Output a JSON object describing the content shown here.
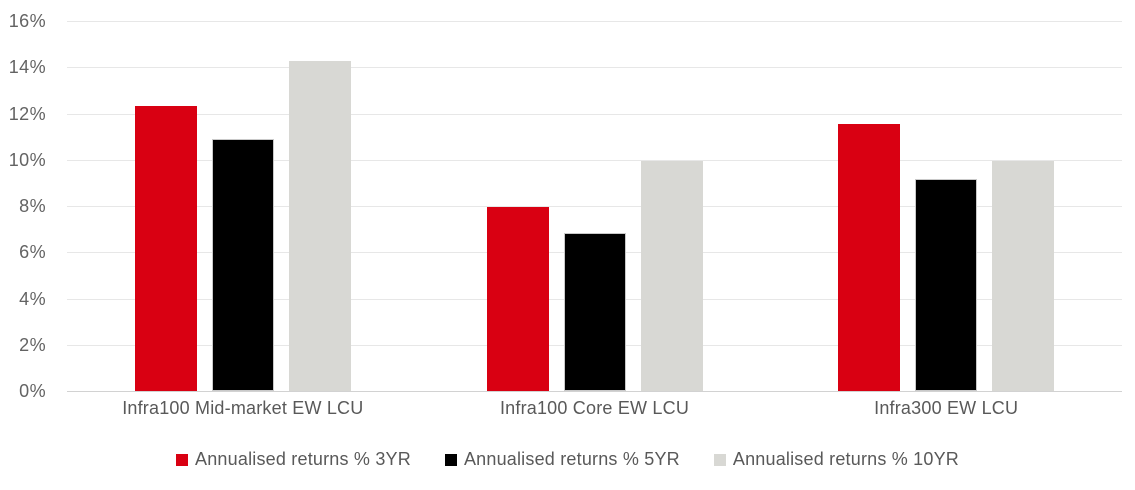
{
  "chart_data": {
    "type": "bar",
    "title": "",
    "categories": [
      "Infra100 Mid-market EW LCU",
      "Infra100 Core EW LCU",
      "Infra300 EW LCU"
    ],
    "series": [
      {
        "name": "Annualised returns % 3YR",
        "color": "#d90012",
        "values": [
          12.34,
          7.94,
          11.55
        ]
      },
      {
        "name": "Annualised returns % 5YR",
        "color": "#000000",
        "values": [
          10.88,
          6.85,
          9.18
        ]
      },
      {
        "name": "Annualised returns % 10YR",
        "color": "#d8d8d4",
        "values": [
          14.26,
          9.96,
          9.96
        ]
      }
    ],
    "ylabel": "",
    "xlabel": "",
    "ylim": [
      0,
      16
    ],
    "ytick_step": 2,
    "ytick_labels": [
      "0%",
      "2%",
      "4%",
      "6%",
      "8%",
      "10%",
      "12%",
      "14%",
      "16%"
    ],
    "grid": true,
    "legend_position": "bottom"
  },
  "colors": {
    "series_3yr": "#d90012",
    "series_5yr": "#000000",
    "series_10yr": "#d8d8d4",
    "gridline": "#e7e7e7",
    "axis_line": "#d2d2d2",
    "axis_text": "#636363",
    "label_text": "#595959",
    "background": "#ffffff"
  }
}
